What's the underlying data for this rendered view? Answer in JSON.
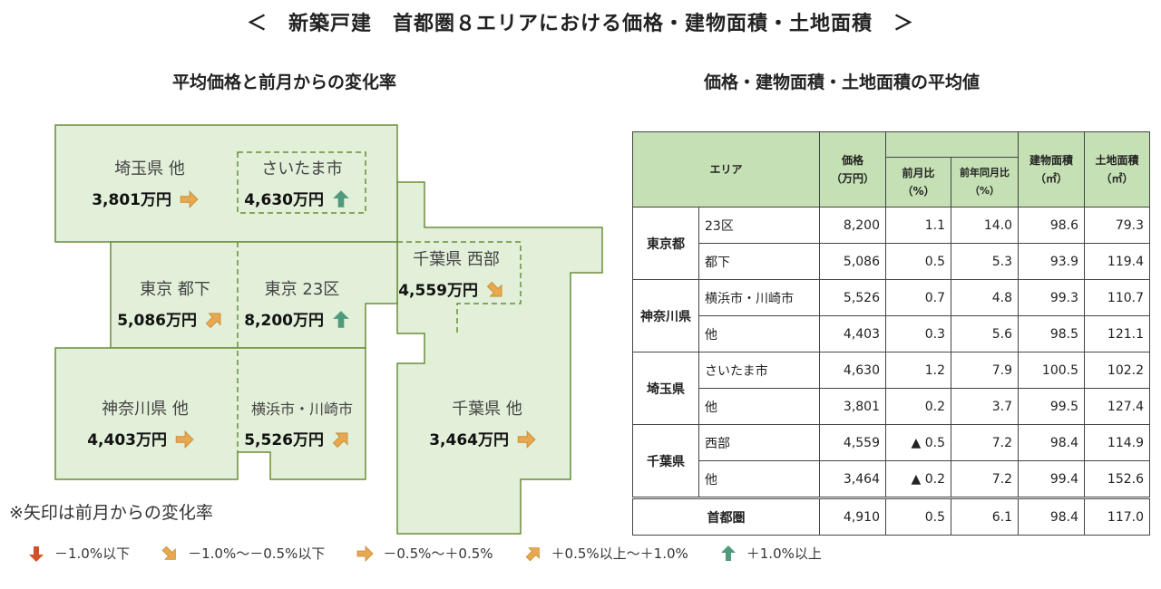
{
  "title": "＜　新築戸建　首都圏８エリアにおける価格・建物面積・土地面積　＞",
  "map_title": "平均価格と前月からの変化率",
  "table_title": "価格・建物面積・土地面積の平均値",
  "colors": {
    "fill": "#e2efd9",
    "stroke": "#6b8e3a",
    "up": "#4e9a7d",
    "right": "#e8a850",
    "down": "#d4502a",
    "header": "#c5e0b4"
  },
  "map": {
    "saitama_other": {
      "name": "埼玉県 他",
      "price": "3,801万円",
      "arrow": "right"
    },
    "saitama_city": {
      "name": "さいたま市",
      "price": "4,630万円",
      "arrow": "up"
    },
    "tokyo_other": {
      "name": "東京 都下",
      "price": "5,086万円",
      "arrow": "diag-up"
    },
    "tokyo_23": {
      "name": "東京 23区",
      "price": "8,200万円",
      "arrow": "up"
    },
    "chiba_west": {
      "name": "千葉県 西部",
      "price": "4,559万円",
      "arrow": "diag-down"
    },
    "kanagawa_other": {
      "name": "神奈川県 他",
      "price": "4,403万円",
      "arrow": "right"
    },
    "yokohama": {
      "name": "横浜市・川崎市",
      "price": "5,526万円",
      "arrow": "diag-up"
    },
    "chiba_other": {
      "name": "千葉県 他",
      "price": "3,464万円",
      "arrow": "right"
    }
  },
  "note": "※矢印は前月からの変化率",
  "legend": [
    {
      "arrow": "down",
      "label": "－1.0%以下"
    },
    {
      "arrow": "diag-down",
      "label": "－1.0%～－0.5%以下"
    },
    {
      "arrow": "right",
      "label": "－0.5%～＋0.5%"
    },
    {
      "arrow": "diag-up",
      "label": "＋0.5%以上～＋1.0%"
    },
    {
      "arrow": "up",
      "label": "＋1.0%以上"
    }
  ],
  "table": {
    "headers": {
      "area": "エリア",
      "price": "価格",
      "price_unit": "（万円）",
      "mom": "前月比",
      "yoy": "前年同月比",
      "pct": "（%）",
      "building": "建物面積",
      "land": "土地面積",
      "sqm": "（㎡）"
    },
    "groups": [
      {
        "pref": "東京都",
        "rows": [
          [
            "23区",
            "8,200",
            "1.1",
            "14.0",
            "98.6",
            "79.3"
          ],
          [
            "都下",
            "5,086",
            "0.5",
            "5.3",
            "93.9",
            "119.4"
          ]
        ]
      },
      {
        "pref": "神奈川県",
        "rows": [
          [
            "横浜市・川崎市",
            "5,526",
            "0.7",
            "4.8",
            "99.3",
            "110.7"
          ],
          [
            "他",
            "4,403",
            "0.3",
            "5.6",
            "98.5",
            "121.1"
          ]
        ]
      },
      {
        "pref": "埼玉県",
        "rows": [
          [
            "さいたま市",
            "4,630",
            "1.2",
            "7.9",
            "100.5",
            "102.2"
          ],
          [
            "他",
            "3,801",
            "0.2",
            "3.7",
            "99.5",
            "127.4"
          ]
        ]
      },
      {
        "pref": "千葉県",
        "rows": [
          [
            "西部",
            "4,559",
            "▲ 0.5",
            "7.2",
            "98.4",
            "114.9"
          ],
          [
            "他",
            "3,464",
            "▲ 0.2",
            "7.2",
            "99.4",
            "152.6"
          ]
        ]
      }
    ],
    "total": [
      "首都圏",
      "4,910",
      "0.5",
      "6.1",
      "98.4",
      "117.0"
    ]
  }
}
